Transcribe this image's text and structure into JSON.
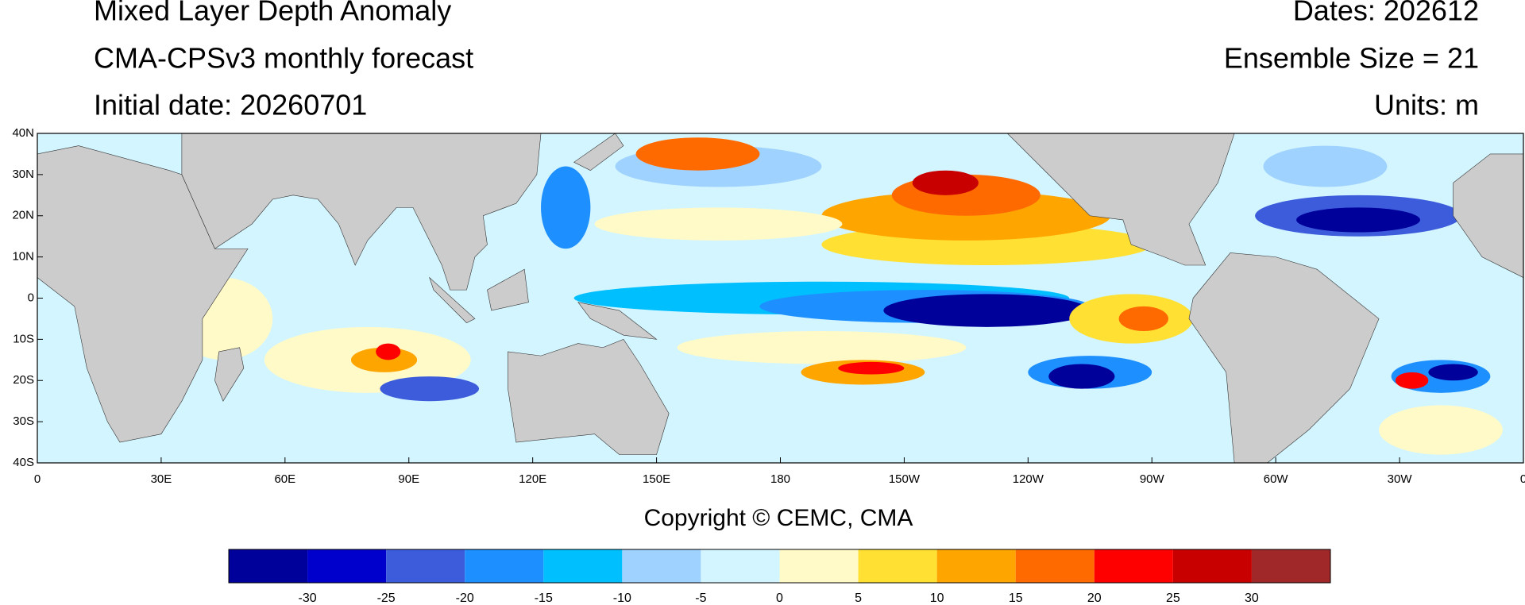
{
  "header": {
    "left": [
      "Mixed Layer Depth Anomaly",
      "CMA-CPSv3 monthly forecast",
      "Initial date: 20260701"
    ],
    "right": [
      "Dates: 202612",
      "Ensemble Size = 21",
      "Units: m"
    ]
  },
  "map": {
    "xlim": [
      0,
      360
    ],
    "xticks": [
      0,
      {
        "value": 30,
        "label": "30E"
      },
      {
        "value": 60,
        "label": "60E"
      },
      {
        "value": 90,
        "label": "90E"
      },
      {
        "value": 120,
        "label": "120E"
      },
      {
        "value": 150,
        "label": "150E"
      },
      180,
      {
        "value": 210,
        "label": "150W"
      },
      {
        "value": 240,
        "label": "120W"
      },
      {
        "value": 270,
        "label": "90W"
      },
      {
        "value": 300,
        "label": "60W"
      },
      {
        "value": 330,
        "label": "30W"
      },
      {
        "value": 360,
        "label": "0"
      }
    ],
    "ylim": [
      -40,
      40
    ],
    "yticks": [
      {
        "value": -40,
        "label": "40S"
      },
      {
        "value": -30,
        "label": "30S"
      },
      {
        "value": -20,
        "label": "20S"
      },
      {
        "value": -10,
        "label": "10S"
      },
      0,
      {
        "value": 10,
        "label": "10N"
      },
      {
        "value": 20,
        "label": "20N"
      },
      {
        "value": 30,
        "label": "30N"
      },
      {
        "value": 40,
        "label": "40N"
      }
    ]
  },
  "footer": "Copyright © CEMC, CMA",
  "colorbar": {
    "lim": [
      -35,
      35
    ],
    "ticks": [
      -30,
      -25,
      -20,
      -15,
      -10,
      -5,
      0,
      5,
      10,
      15,
      20,
      25,
      30
    ],
    "colors": [
      "#00009b",
      "#0000cd",
      "#3c5cdb",
      "#1e8fff",
      "#00bfff",
      "#a0d2ff",
      "#d2f5ff",
      "#fffac8",
      "#ffe033",
      "#ffa500",
      "#ff6a00",
      "#ff0000",
      "#c80000",
      "#a02828"
    ]
  }
}
